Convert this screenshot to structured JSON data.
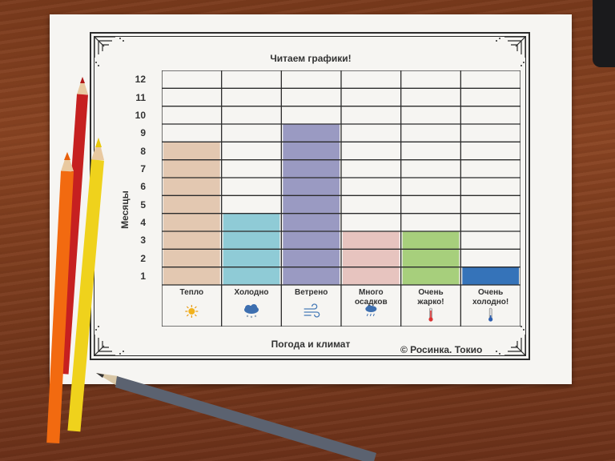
{
  "chart_data": {
    "type": "bar",
    "title": "Читаем графики!",
    "xlabel": "Погода и климат",
    "ylabel": "Месяцы",
    "categories": [
      "Тепло",
      "Холодно",
      "Ветрено",
      "Много осадков",
      "Очень жарко!",
      "Очень холодно!"
    ],
    "category_lines": [
      [
        "Тепло"
      ],
      [
        "Холодно"
      ],
      [
        "Ветрено"
      ],
      [
        "Много",
        "осадков"
      ],
      [
        "Очень",
        "жарко!"
      ],
      [
        "Очень",
        "холодно!"
      ]
    ],
    "values": [
      8,
      4,
      9,
      3,
      3,
      1
    ],
    "yticks": [
      1,
      2,
      3,
      4,
      5,
      6,
      7,
      8,
      9,
      10,
      11,
      12
    ],
    "ylim": [
      0,
      12
    ],
    "grid": true,
    "bar_colors": [
      "#e3c8b1",
      "#8fcbd6",
      "#9a9ac2",
      "#e7c4bf",
      "#a7cf7c",
      "#3573b9"
    ],
    "icons": [
      "sun-icon",
      "snow-cloud-icon",
      "wind-icon",
      "rain-cloud-icon",
      "hot-thermometer-icon",
      "cold-thermometer-icon"
    ]
  },
  "credit": "© Росинка. Токио"
}
